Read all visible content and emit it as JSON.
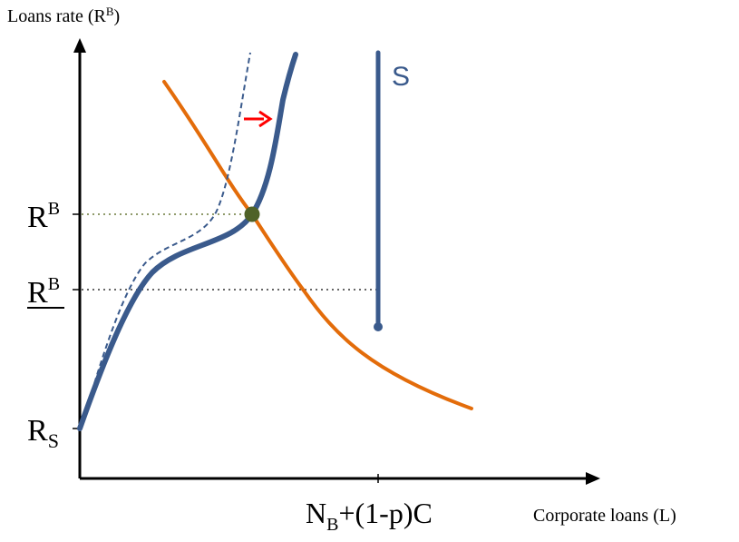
{
  "y_axis_label": {
    "main": "Loans rate (R",
    "sup": "B",
    "close": ")"
  },
  "x_axis_label": "Corporate loans (L)",
  "x_tick_label": {
    "n": "N",
    "n_sub": "B",
    "rest": "+(1-p)C"
  },
  "y_tick_rb": {
    "r": "R",
    "sup": "B"
  },
  "y_tick_rb_under": {
    "r": "R",
    "sup": "B"
  },
  "y_tick_rs": {
    "r": "R",
    "sub": "S"
  },
  "supply_label": "S",
  "colors": {
    "axis": "#000000",
    "demand": "#E36C0A",
    "supply": "#3A5A8C",
    "equilibrium": "#4F6228",
    "shift_arrow": "#FF0000",
    "guide_green": "#6B7A3A",
    "guide_black": "#333333"
  }
}
